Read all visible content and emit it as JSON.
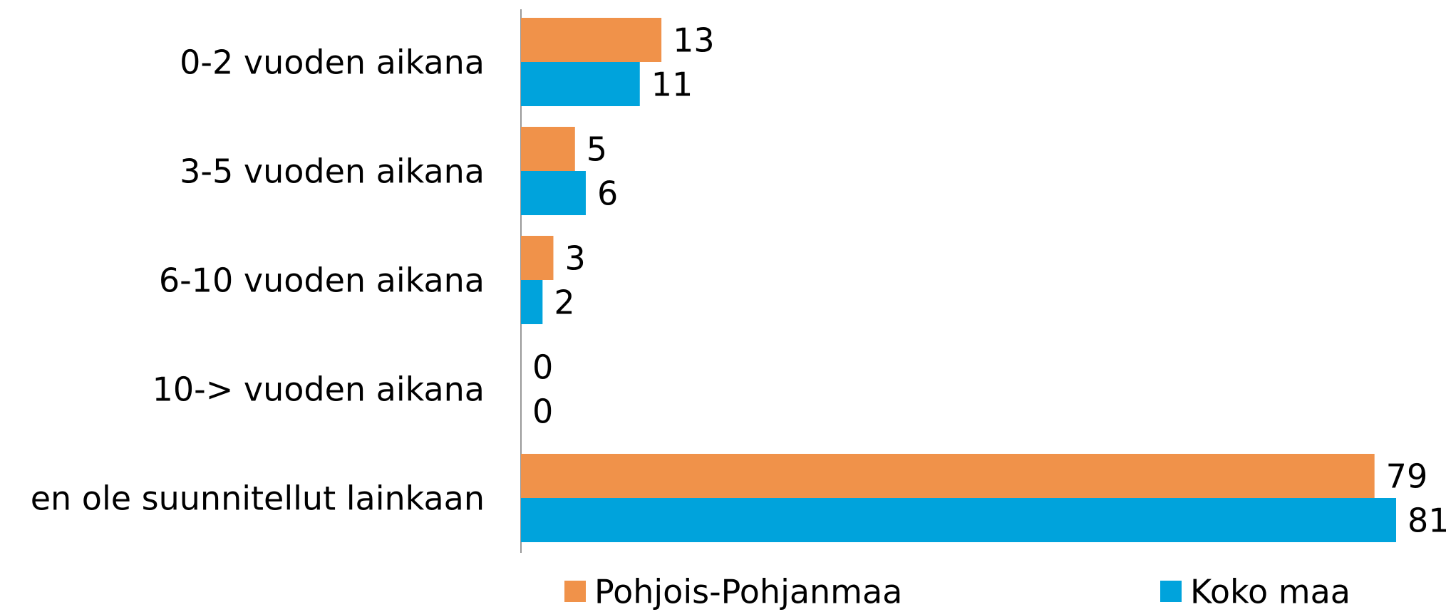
{
  "chart_data": {
    "type": "bar",
    "orientation": "horizontal",
    "categories": [
      "0-2 vuoden aikana",
      "3-5 vuoden aikana",
      "6-10 vuoden aikana",
      "10-> vuoden aikana",
      "en ole suunnitellut lainkaan"
    ],
    "series": [
      {
        "name": "Pohjois-Pohjanmaa",
        "color": "#f0924a",
        "values": [
          13,
          5,
          3,
          0,
          79
        ]
      },
      {
        "name": "Koko maa",
        "color": "#00a3dc",
        "values": [
          11,
          6,
          2,
          0,
          81
        ]
      }
    ],
    "legend": "bottom"
  }
}
